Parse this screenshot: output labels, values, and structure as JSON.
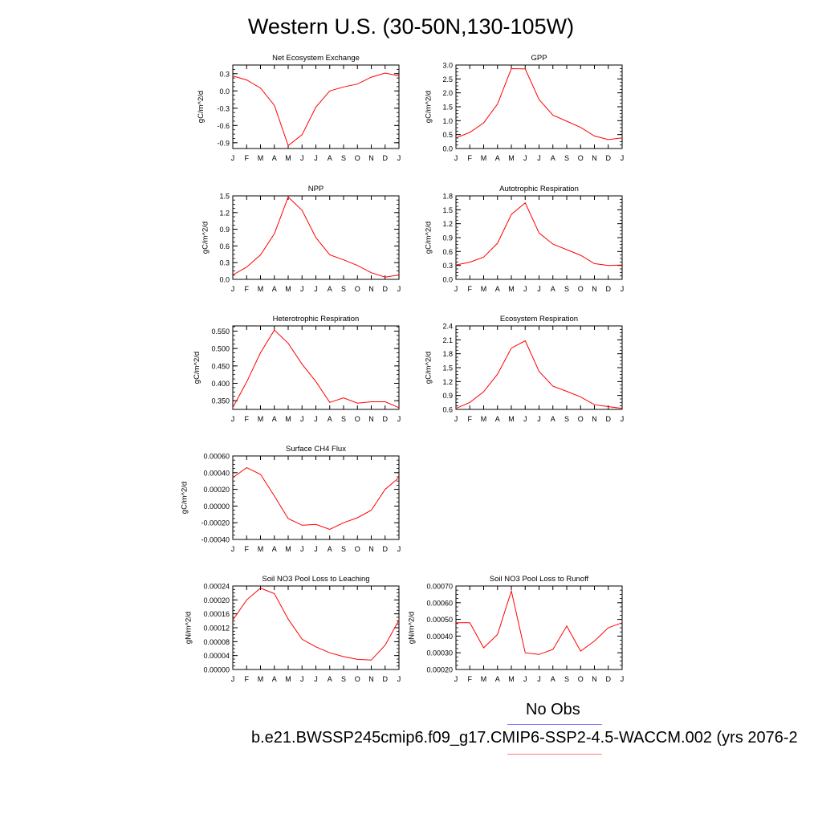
{
  "title": "Western U.S. (30-50N,130-105W)",
  "months": [
    "J",
    "F",
    "M",
    "A",
    "M",
    "J",
    "J",
    "A",
    "S",
    "O",
    "N",
    "D",
    "J"
  ],
  "chart_data": [
    {
      "type": "line",
      "title": "Net Ecosystem Exchange",
      "ylabel": "gC/m^2/d",
      "ylim": [
        -1.0,
        0.45
      ],
      "yticks": [
        0.3,
        0.0,
        -0.3,
        -0.6,
        -0.9
      ],
      "yticklabels": [
        "0.3",
        "0.0",
        "-0.3",
        "-0.6",
        "-0.9"
      ],
      "series": [
        {
          "values": [
            0.26,
            0.19,
            0.05,
            -0.25,
            -0.95,
            -0.76,
            -0.28,
            0.0,
            0.07,
            0.12,
            0.24,
            0.31,
            0.26
          ],
          "color": "#ff0000"
        }
      ]
    },
    {
      "type": "line",
      "title": "GPP",
      "ylabel": "gC/m^2/d",
      "ylim": [
        0.0,
        3.0
      ],
      "yticks": [
        3.0,
        2.5,
        2.0,
        1.5,
        1.0,
        0.5,
        0.0
      ],
      "yticklabels": [
        "3.0",
        "2.5",
        "2.0",
        "1.5",
        "1.0",
        "0.5",
        "0.0"
      ],
      "series": [
        {
          "values": [
            0.38,
            0.58,
            0.92,
            1.6,
            2.87,
            2.86,
            1.76,
            1.2,
            0.98,
            0.76,
            0.45,
            0.32,
            0.38
          ],
          "color": "#ff0000"
        }
      ]
    },
    {
      "type": "line",
      "title": "NPP",
      "ylabel": "gC/m^2/d",
      "ylim": [
        0.0,
        1.5
      ],
      "yticks": [
        1.5,
        1.2,
        0.9,
        0.6,
        0.3,
        0.0
      ],
      "yticklabels": [
        "1.5",
        "1.2",
        "0.9",
        "0.6",
        "0.3",
        "0.0"
      ],
      "series": [
        {
          "values": [
            0.08,
            0.22,
            0.44,
            0.82,
            1.48,
            1.24,
            0.75,
            0.44,
            0.35,
            0.25,
            0.12,
            0.04,
            0.08
          ],
          "color": "#ff0000"
        }
      ]
    },
    {
      "type": "line",
      "title": "Autotrophic Respiration",
      "ylabel": "gC/m^2/d",
      "ylim": [
        0.0,
        1.8
      ],
      "yticks": [
        1.8,
        1.5,
        1.2,
        0.9,
        0.6,
        0.3,
        0.0
      ],
      "yticklabels": [
        "1.8",
        "1.5",
        "1.2",
        "0.9",
        "0.6",
        "0.3",
        "0.0"
      ],
      "series": [
        {
          "values": [
            0.31,
            0.37,
            0.48,
            0.78,
            1.4,
            1.65,
            1.0,
            0.76,
            0.64,
            0.52,
            0.34,
            0.3,
            0.31
          ],
          "color": "#ff0000"
        }
      ]
    },
    {
      "type": "line",
      "title": "Heterotrophic Respiration",
      "ylabel": "gC/m^2/d",
      "ylim": [
        0.325,
        0.565
      ],
      "yticks": [
        0.55,
        0.5,
        0.45,
        0.4,
        0.35
      ],
      "yticklabels": [
        "0.550",
        "0.500",
        "0.450",
        "0.400",
        "0.350"
      ],
      "series": [
        {
          "values": [
            0.33,
            0.404,
            0.488,
            0.553,
            0.515,
            0.455,
            0.405,
            0.345,
            0.358,
            0.343,
            0.347,
            0.347,
            0.33
          ],
          "color": "#ff0000"
        }
      ]
    },
    {
      "type": "line",
      "title": "Ecosystem Respiration",
      "ylabel": "gC/m^2/d",
      "ylim": [
        0.6,
        2.4
      ],
      "yticks": [
        2.4,
        2.1,
        1.8,
        1.5,
        1.2,
        0.9,
        0.6
      ],
      "yticklabels": [
        "2.4",
        "2.1",
        "1.8",
        "1.5",
        "1.2",
        "0.9",
        "0.6"
      ],
      "series": [
        {
          "values": [
            0.62,
            0.75,
            0.98,
            1.36,
            1.92,
            2.08,
            1.42,
            1.1,
            0.99,
            0.87,
            0.7,
            0.66,
            0.62
          ],
          "color": "#ff0000"
        }
      ]
    },
    {
      "type": "line",
      "title": "Surface CH4 Flux",
      "ylabel": "gC/m^2/d",
      "ylim": [
        -0.0004,
        0.0006
      ],
      "yticks": [
        0.0006,
        0.0004,
        0.0002,
        0.0,
        -0.0002,
        -0.0004
      ],
      "yticklabels": [
        "0.00060",
        "0.00040",
        "0.00020",
        "0.00000",
        "-0.00020",
        "-0.00040"
      ],
      "series": [
        {
          "values": [
            0.00034,
            0.00046,
            0.00038,
            0.00012,
            -0.00015,
            -0.00023,
            -0.00022,
            -0.00028,
            -0.0002,
            -0.00014,
            -5e-05,
            0.0002,
            0.00034
          ],
          "color": "#ff0000"
        }
      ]
    },
    {
      "type": "line",
      "title": "Soil NO3 Pool Loss to Leaching",
      "ylabel": "gN/m^2/d",
      "ylim": [
        0.0,
        0.00024
      ],
      "yticks": [
        0.00024,
        0.0002,
        0.00016,
        0.00012,
        8e-05,
        4e-05,
        0.0
      ],
      "yticklabels": [
        "0.00024",
        "0.00020",
        "0.00016",
        "0.00012",
        "0.00008",
        "0.00004",
        "0.00000"
      ],
      "series": [
        {
          "values": [
            0.000142,
            0.0002,
            0.000234,
            0.000218,
            0.000145,
            8.7e-05,
            6.5e-05,
            4.8e-05,
            3.7e-05,
            2.9e-05,
            2.7e-05,
            7e-05,
            0.000142
          ],
          "color": "#ff0000"
        }
      ]
    },
    {
      "type": "line",
      "title": "Soil NO3 Pool Loss to Runoff",
      "ylabel": "gN/m^2/d",
      "ylim": [
        0.0002,
        0.0007
      ],
      "yticks": [
        0.0007,
        0.0006,
        0.0005,
        0.0004,
        0.0003,
        0.0002
      ],
      "yticklabels": [
        "0.00070",
        "0.00060",
        "0.00050",
        "0.00040",
        "0.00030",
        "0.00020"
      ],
      "series": [
        {
          "values": [
            0.00048,
            0.00048,
            0.00033,
            0.00041,
            0.00067,
            0.0003,
            0.00029,
            0.00032,
            0.00046,
            0.00031,
            0.00037,
            0.00045,
            0.00048
          ],
          "color": "#ff0000"
        }
      ]
    }
  ],
  "legend": {
    "obs_label": "No Obs",
    "obs_color": "#8080ff",
    "model_label": "b.e21.BWSSP245cmip6.f09_g17.CMIP6-SSP2-4.5-WACCM.002 (yrs 2076-2",
    "model_color": "#ff8080"
  }
}
